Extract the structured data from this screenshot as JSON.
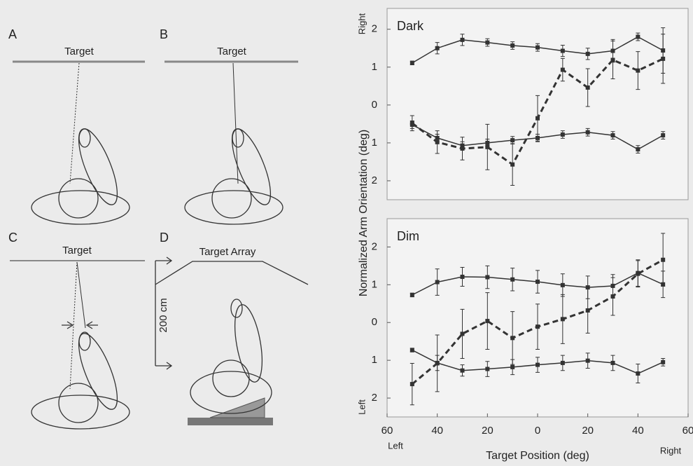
{
  "figure": {
    "panels": [
      "A",
      "B",
      "C",
      "D"
    ],
    "targets": [
      "Target",
      "Target",
      "Target",
      "Target Array"
    ],
    "distance": "200 cm"
  },
  "chart_data": [
    {
      "type": "line",
      "title": "Dark",
      "ylabel_top": "Right",
      "x": [
        -50,
        -40,
        -30,
        -20,
        -10,
        0,
        10,
        20,
        30,
        40,
        50
      ],
      "xlim": [
        -60,
        60
      ],
      "ylim": [
        -2.5,
        2.55
      ],
      "yticks": [
        {
          "value": -2,
          "label": "2"
        },
        {
          "value": -1,
          "label": "1"
        },
        0,
        1,
        2
      ],
      "series": [
        {
          "color": "#333333",
          "line_style": "solid",
          "values": [
            1.11,
            1.5,
            1.72,
            1.65,
            1.57,
            1.52,
            1.43,
            1.35,
            1.43,
            1.8,
            1.44
          ],
          "errors": [
            0.05,
            0.15,
            0.15,
            0.1,
            0.1,
            0.1,
            0.15,
            0.15,
            0.3,
            0.1,
            0.6
          ]
        },
        {
          "color": "#333333",
          "line_style": "solid",
          "values": [
            -0.52,
            -0.87,
            -1.07,
            -1.0,
            -0.93,
            -0.87,
            -0.78,
            -0.72,
            -0.8,
            -1.17,
            -0.8
          ],
          "errors": [
            0.1,
            0.1,
            0.1,
            0.1,
            0.1,
            0.1,
            0.1,
            0.1,
            0.1,
            0.1,
            0.1
          ]
        },
        {
          "color": "#333333",
          "line_style": "dashed",
          "values": [
            -0.48,
            -0.98,
            -1.15,
            -1.11,
            -1.57,
            -0.35,
            0.93,
            0.46,
            1.19,
            0.91,
            1.22
          ],
          "errors": [
            0.2,
            0.3,
            0.3,
            0.6,
            0.55,
            0.6,
            0.3,
            0.5,
            0.5,
            0.5,
            0.65
          ]
        }
      ]
    },
    {
      "type": "line",
      "title": "Dim",
      "ylabel": "Normalized Arm Orientation (deg)",
      "ylabel_bottom": "Left",
      "xlabel": "Target Position (deg)",
      "xlabel_left": "Left",
      "xlabel_right": "Right",
      "x": [
        -50,
        -40,
        -30,
        -20,
        -10,
        0,
        10,
        20,
        30,
        40,
        50
      ],
      "xlim": [
        -60,
        60
      ],
      "ylim": [
        -2.5,
        2.75
      ],
      "xticks": [
        {
          "value": -60,
          "label": "60"
        },
        {
          "value": -40,
          "label": "40"
        },
        {
          "value": -20,
          "label": "20"
        },
        0,
        20,
        40,
        60
      ],
      "yticks": [
        {
          "value": -2,
          "label": "2"
        },
        {
          "value": -1,
          "label": "1"
        },
        0,
        1,
        2
      ],
      "series": [
        {
          "color": "#333333",
          "line_style": "solid",
          "values": [
            0.73,
            1.07,
            1.21,
            1.2,
            1.14,
            1.08,
            0.99,
            0.93,
            0.97,
            1.31,
            1.01
          ],
          "errors": [
            0.05,
            0.35,
            0.25,
            0.3,
            0.3,
            0.3,
            0.3,
            0.3,
            0.3,
            0.35,
            0.35
          ]
        },
        {
          "color": "#333333",
          "line_style": "solid",
          "values": [
            -0.73,
            -1.07,
            -1.27,
            -1.23,
            -1.18,
            -1.12,
            -1.07,
            -1.01,
            -1.07,
            -1.35,
            -1.05
          ],
          "errors": [
            0.05,
            0.2,
            0.15,
            0.2,
            0.2,
            0.2,
            0.2,
            0.2,
            0.2,
            0.25,
            0.1
          ]
        },
        {
          "color": "#333333",
          "line_style": "dashed",
          "values": [
            -1.63,
            -1.08,
            -0.3,
            0.04,
            -0.41,
            -0.11,
            0.09,
            0.32,
            0.69,
            1.29,
            1.66
          ],
          "errors": [
            0.55,
            0.75,
            0.65,
            0.75,
            0.7,
            0.6,
            0.65,
            0.6,
            0.5,
            0.35,
            0.7
          ]
        }
      ]
    }
  ]
}
